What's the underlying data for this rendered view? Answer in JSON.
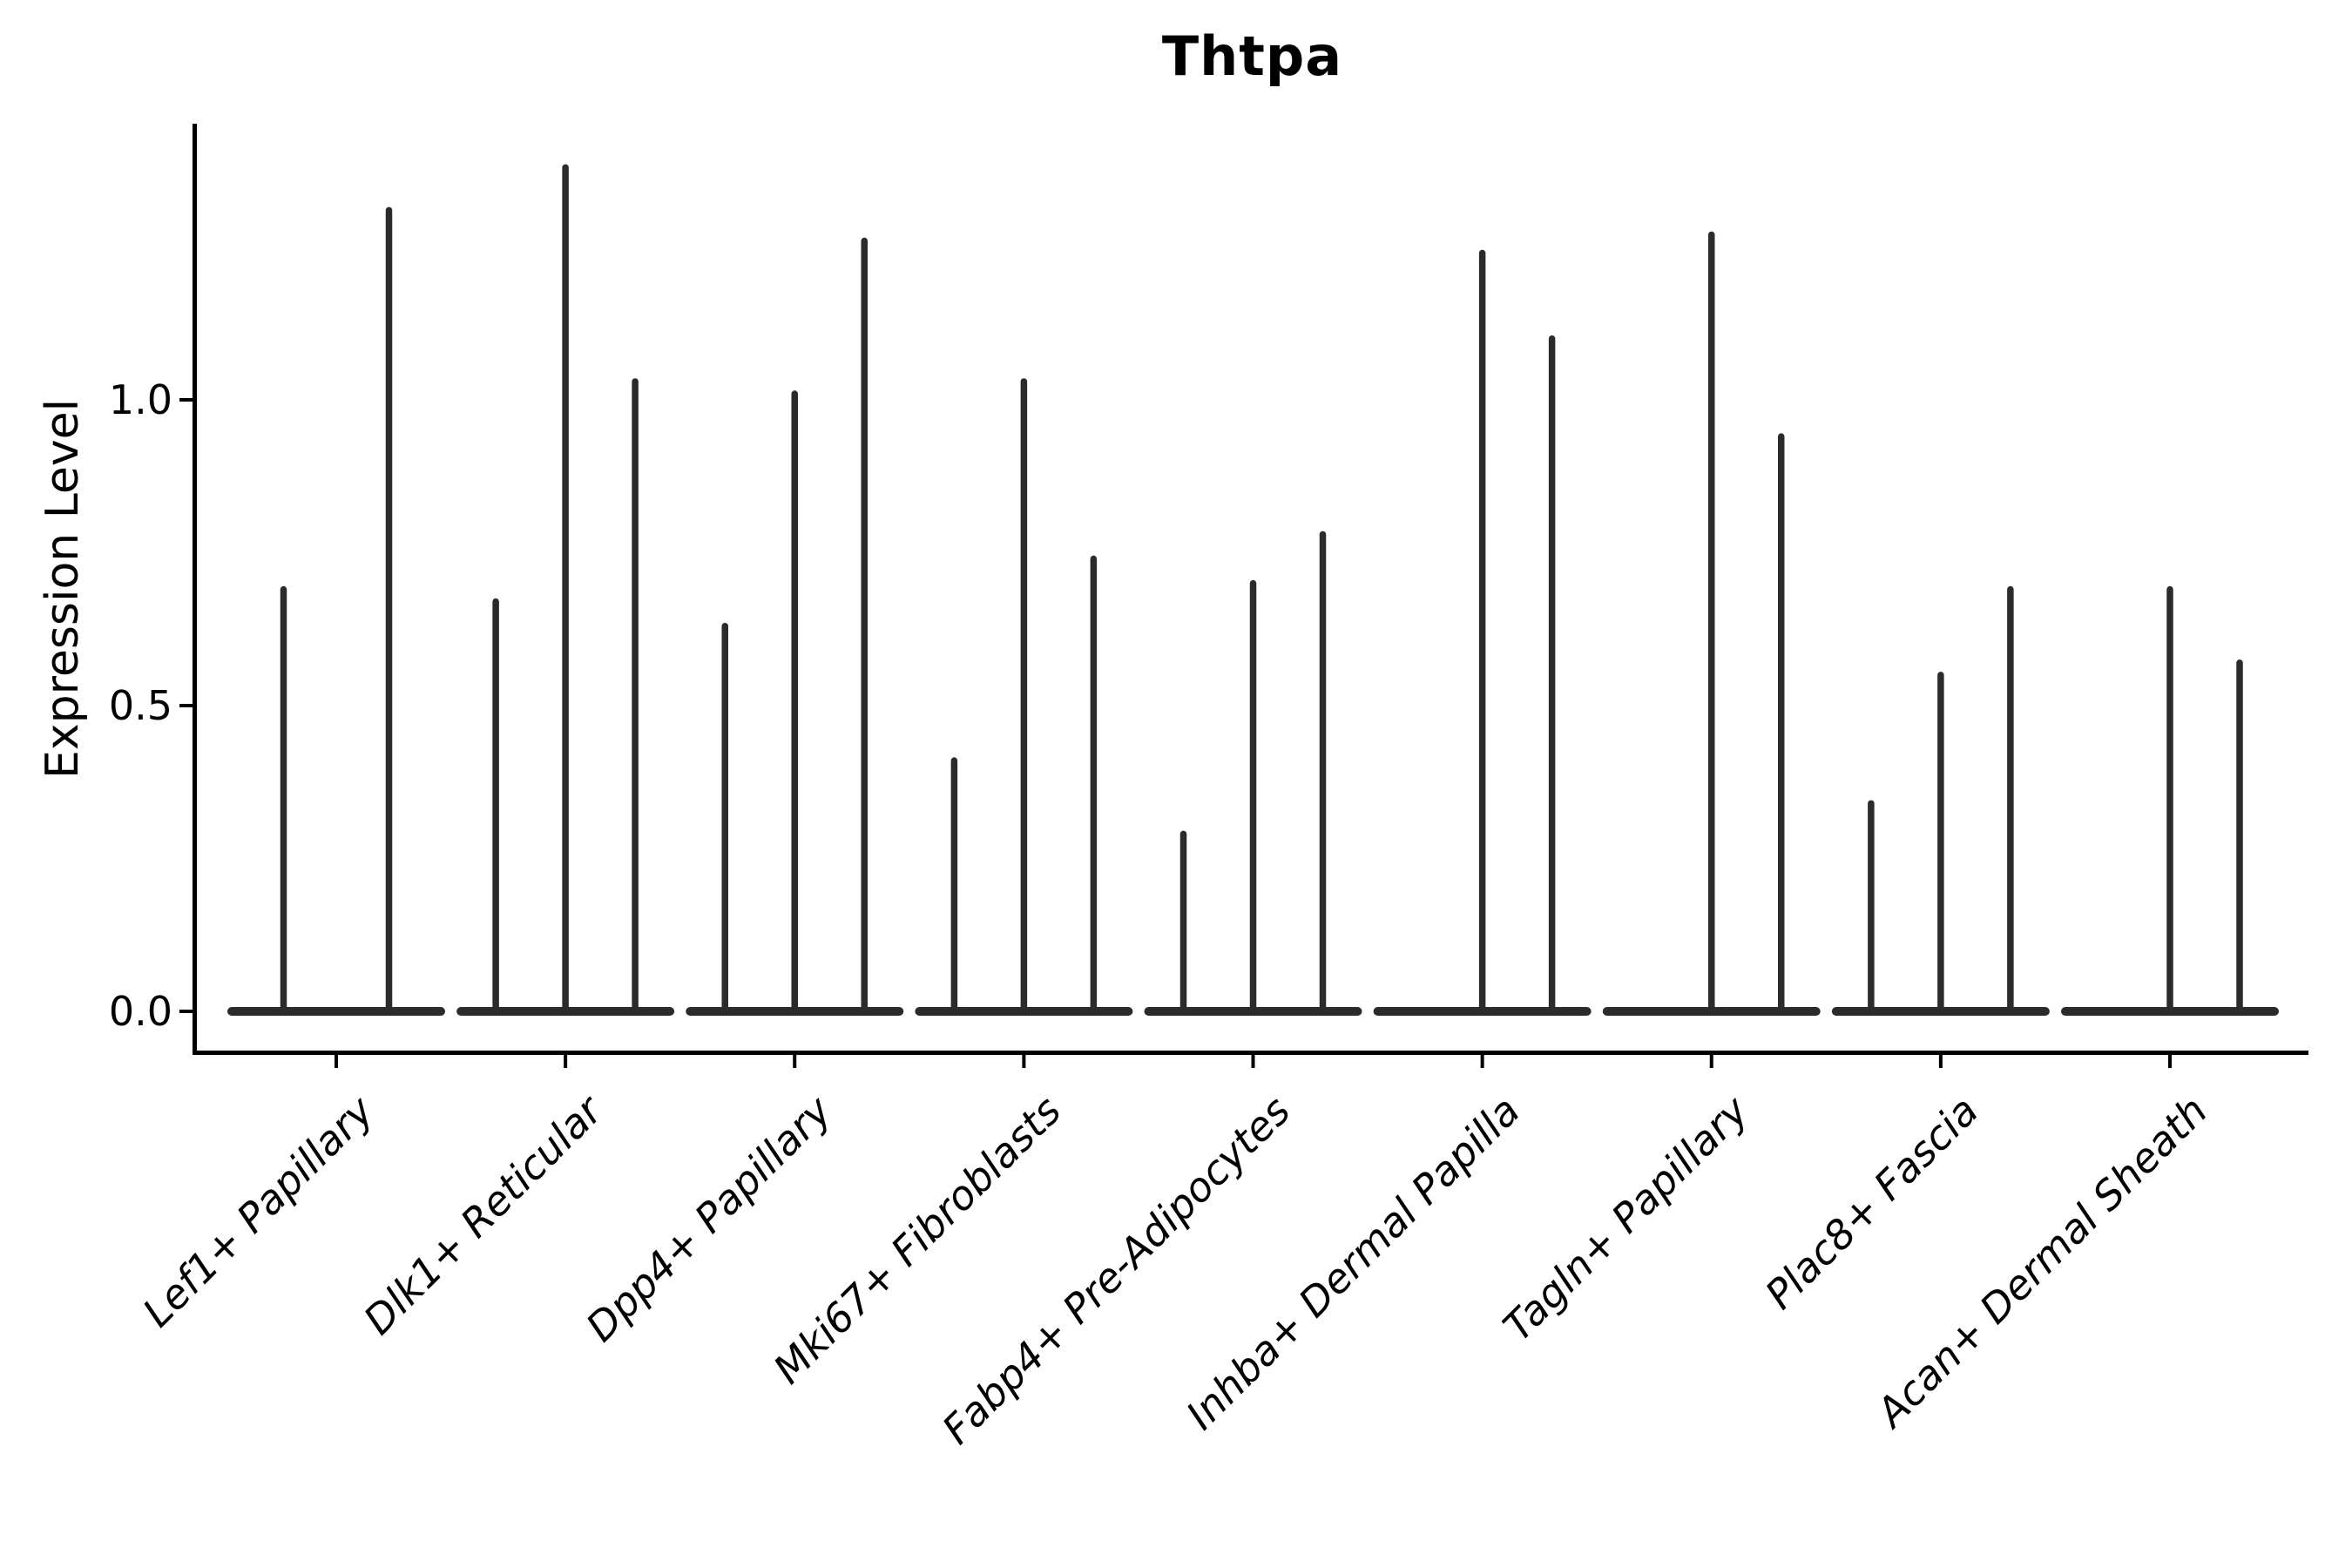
{
  "chart_data": {
    "type": "violin",
    "title": "Thtpa",
    "ylabel": "Expression Level",
    "xlabel": "",
    "y_ticks": [
      0.0,
      0.5,
      1.0
    ],
    "y_tick_labels": [
      "0.0",
      "0.5",
      "1.0"
    ],
    "ylim": [
      -0.07,
      1.45
    ],
    "grid": "off",
    "legend": "none",
    "baseline_value": 0.0,
    "categories": [
      "Lef1+ Papillary",
      "Dlk1+ Reticular",
      "Dpp4+ Papillary",
      "Mki67+ Fibroblasts",
      "Fabp4+ Pre-Adipocytes",
      "Inhba+ Dermal Papilla",
      "Tagln+ Papillary",
      "Plac8+ Fascia",
      "Acan+ Dermal Sheath"
    ],
    "series": [
      {
        "category": "Lef1+ Papillary",
        "spike_maxima": [
          0.69,
          1.31
        ]
      },
      {
        "category": "Dlk1+ Reticular",
        "spike_maxima": [
          0.67,
          1.38,
          1.03
        ]
      },
      {
        "category": "Dpp4+ Papillary",
        "spike_maxima": [
          0.63,
          1.01,
          1.26
        ]
      },
      {
        "category": "Mki67+ Fibroblasts",
        "spike_maxima": [
          0.41,
          1.03,
          0.74
        ]
      },
      {
        "category": "Fabp4+ Pre-Adipocytes",
        "spike_maxima": [
          0.29,
          0.7,
          0.78
        ]
      },
      {
        "category": "Inhba+ Dermal Papilla",
        "spike_maxima": [
          0.0,
          1.24,
          1.1
        ]
      },
      {
        "category": "Tagln+ Papillary",
        "spike_maxima": [
          0.0,
          1.27,
          0.94
        ]
      },
      {
        "category": "Plac8+ Fascia",
        "spike_maxima": [
          0.34,
          0.55,
          0.69
        ]
      },
      {
        "category": "Acan+ Dermal Sheath",
        "spike_maxima": [
          0.0,
          0.69,
          0.57
        ]
      }
    ],
    "colors": {
      "violin": "#2b2b2b",
      "axis": "#000000",
      "text": "#000000",
      "background": "#ffffff"
    }
  }
}
